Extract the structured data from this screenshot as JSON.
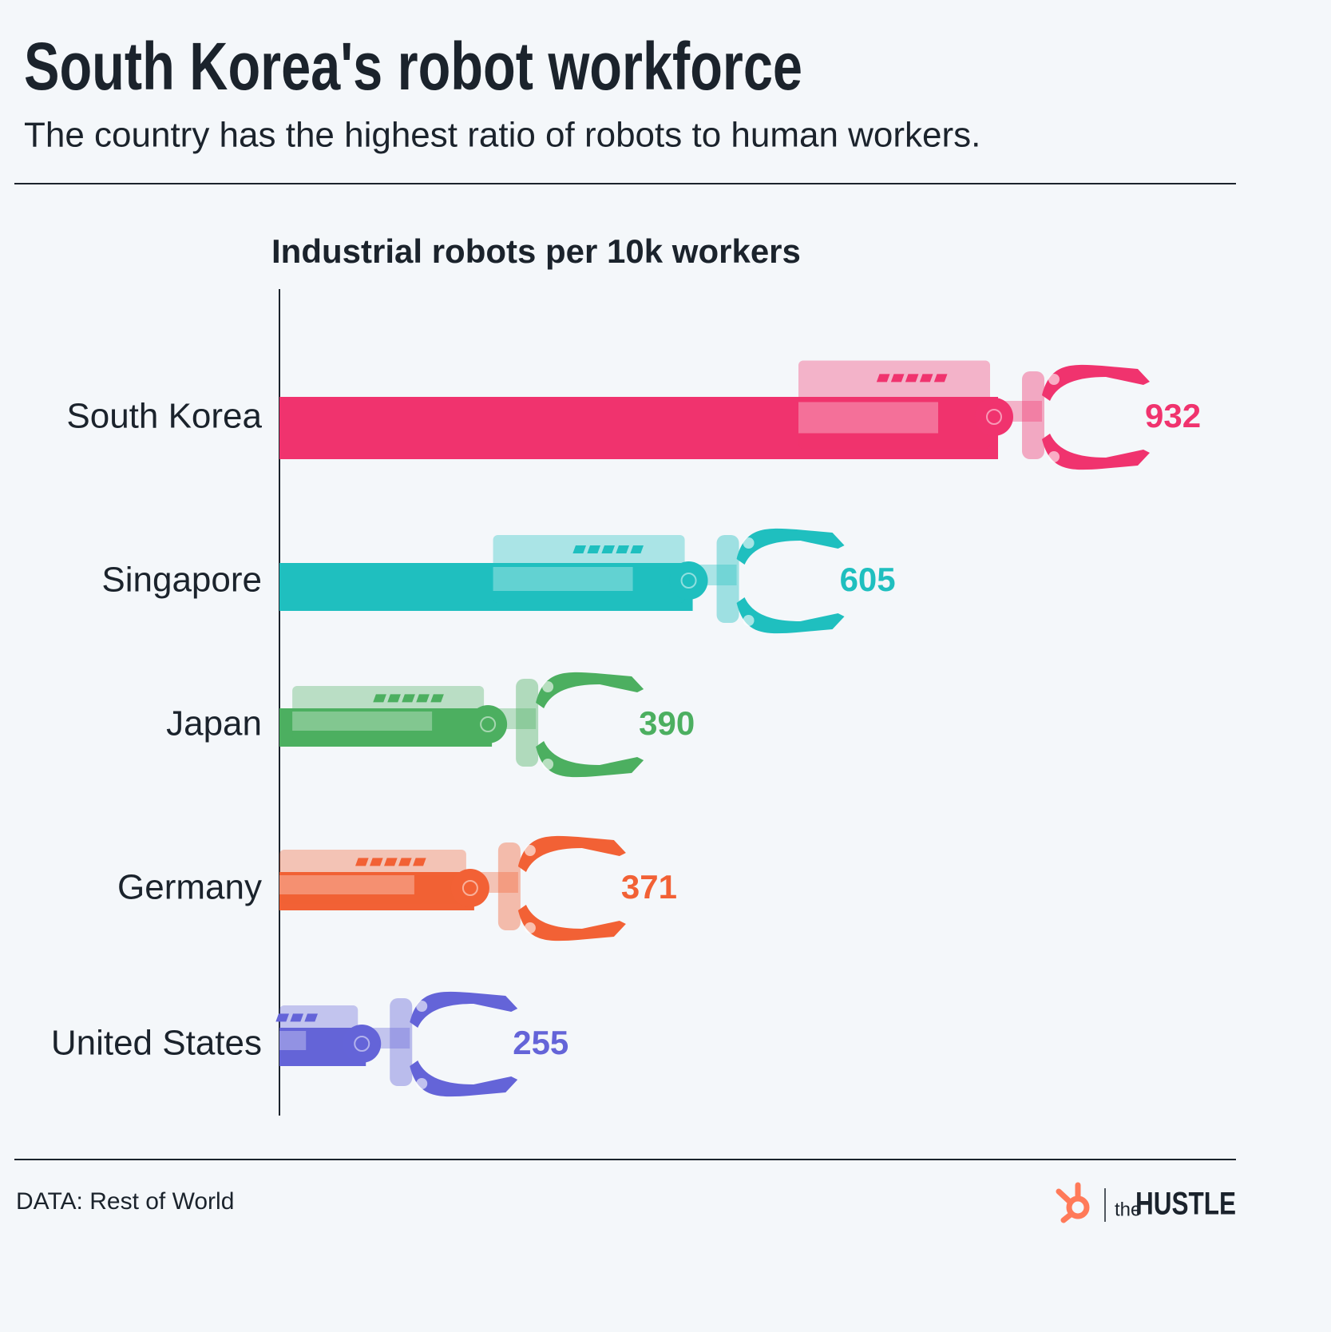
{
  "chart_data": {
    "type": "bar",
    "orientation": "horizontal",
    "title": "South Korea's robot workforce",
    "subtitle": "The country has the highest ratio of robots to human workers.",
    "axis_label": "Industrial robots per 10k workers",
    "categories": [
      "South Korea",
      "Singapore",
      "Japan",
      "Germany",
      "United States"
    ],
    "values": [
      932,
      605,
      390,
      371,
      255
    ],
    "colors": [
      "#f0336e",
      "#1fbfbf",
      "#4caf60",
      "#f26135",
      "#6464d8"
    ]
  },
  "source": "DATA: Rest of World",
  "logo": {
    "prefix": "the",
    "name": "HUSTLE"
  }
}
